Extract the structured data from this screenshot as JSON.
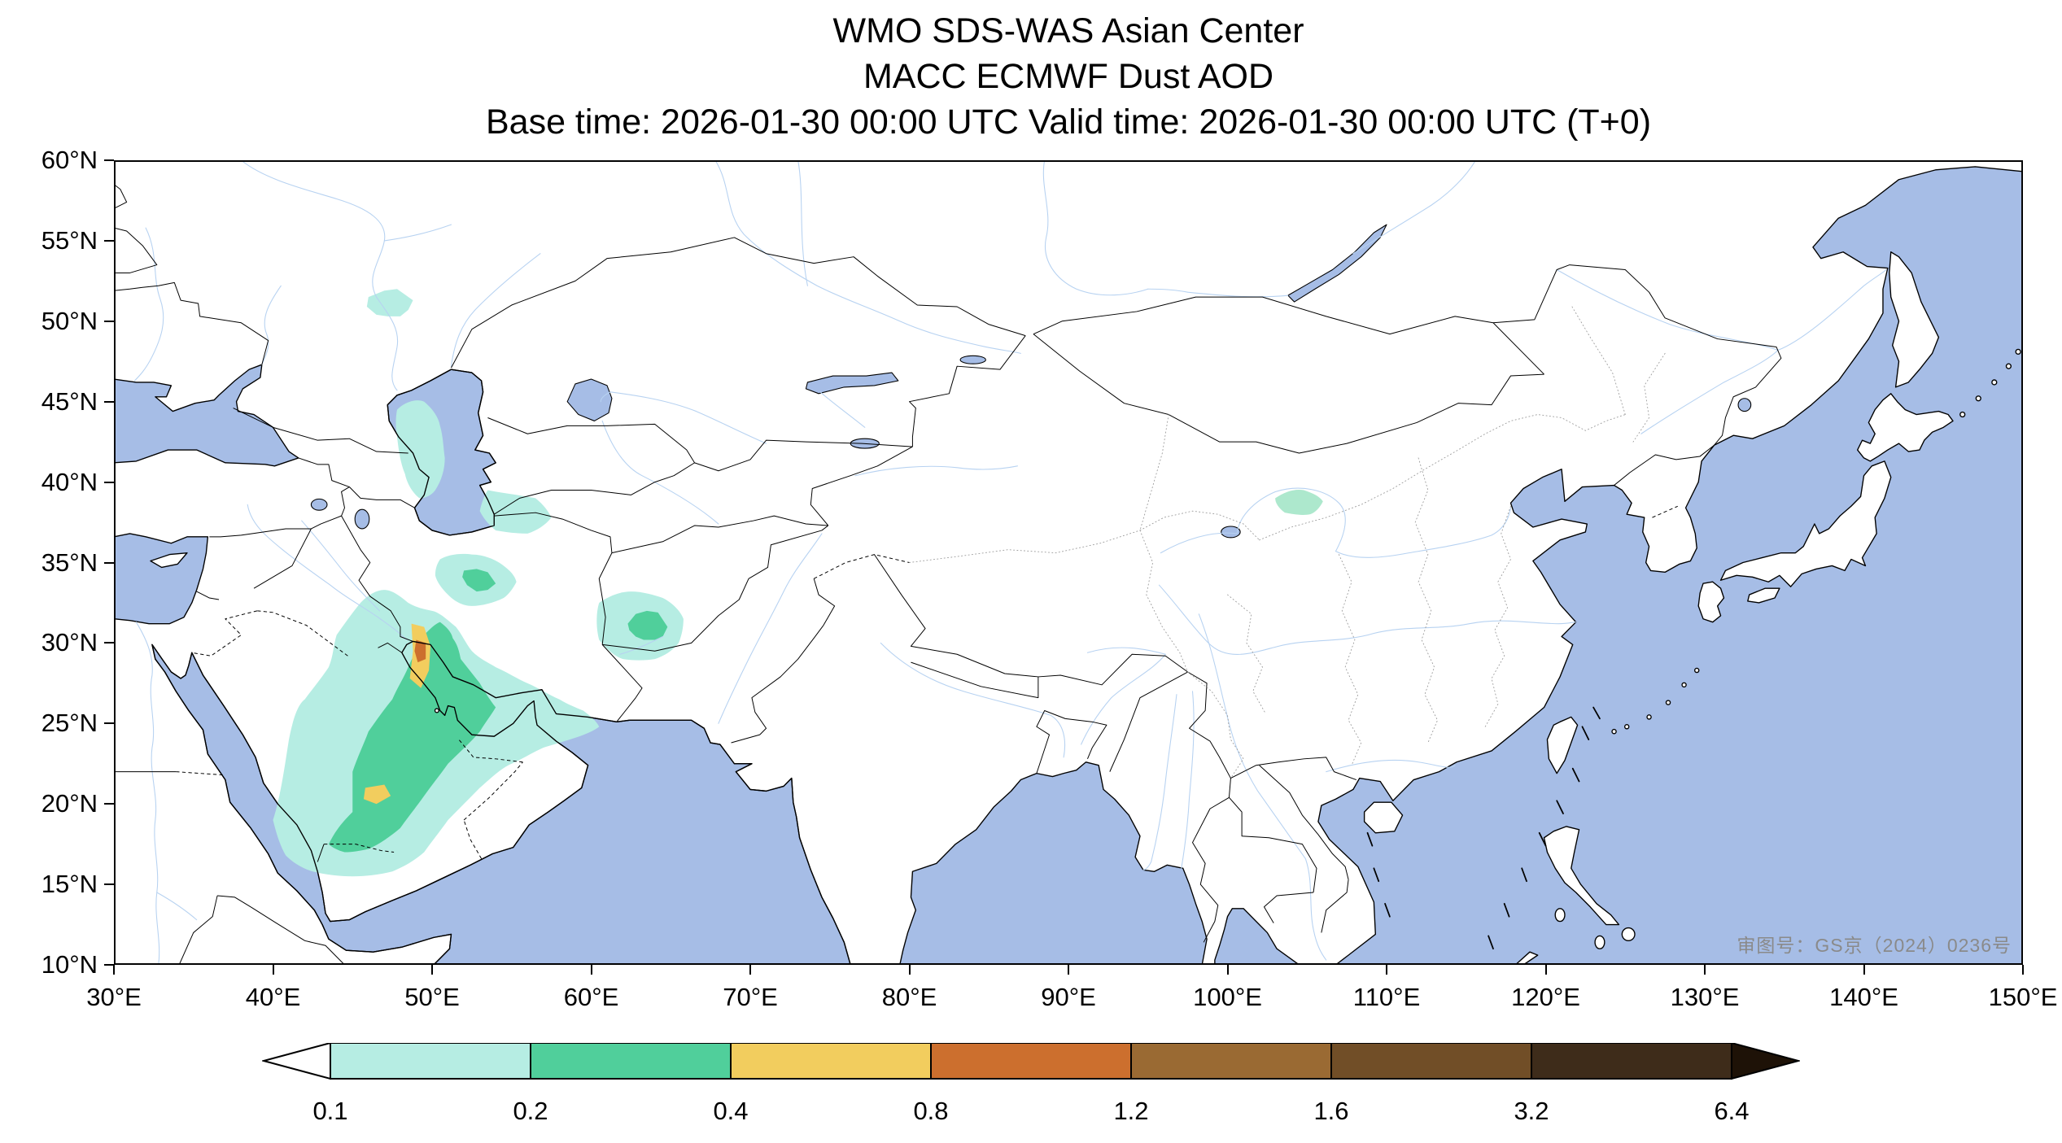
{
  "title": {
    "line1": "WMO SDS-WAS Asian Center",
    "line2": "MACC ECMWF Dust AOD",
    "line3": "Base time: 2026-01-30 00:00 UTC Valid time: 2026-01-30 00:00 UTC (T+0)"
  },
  "axes": {
    "lon_ticks": [
      "30°E",
      "40°E",
      "50°E",
      "60°E",
      "70°E",
      "80°E",
      "90°E",
      "100°E",
      "110°E",
      "120°E",
      "130°E",
      "140°E",
      "150°E"
    ],
    "lat_ticks": [
      "60°N",
      "55°N",
      "50°N",
      "45°N",
      "40°N",
      "35°N",
      "30°N",
      "25°N",
      "20°N",
      "15°N",
      "10°N"
    ]
  },
  "colorbar": {
    "tick_labels": [
      "0.1",
      "0.2",
      "0.4",
      "0.8",
      "1.2",
      "1.6",
      "3.2",
      "6.4"
    ],
    "segment_colors": [
      "#b6ede3",
      "#50cf9b",
      "#f2cd5e",
      "#cc6f2e",
      "#9a6a33",
      "#714e27",
      "#3e2c1a"
    ],
    "under_color": "#ffffff",
    "over_color": "#1e1207"
  },
  "map": {
    "watermark": "审图号：GS京（2024）0236号"
  },
  "aod_legend": {
    "variable": "Dust Aerosol Optical Depth",
    "levels": [
      0.1,
      0.2,
      0.4,
      0.8,
      1.2,
      1.6,
      3.2,
      6.4
    ]
  },
  "colors": {
    "ocean": "#a6bde6",
    "land": "#ffffff",
    "river": "#b7d2f1",
    "coast": "#000000",
    "border": "#000000",
    "province": "#9a9a9a",
    "aod1": "#b6ede3",
    "aod2": "#50cf9b",
    "aod3": "#f2cd5e",
    "aod4": "#cc6f2e",
    "aodAlt": "#ade8cd"
  }
}
